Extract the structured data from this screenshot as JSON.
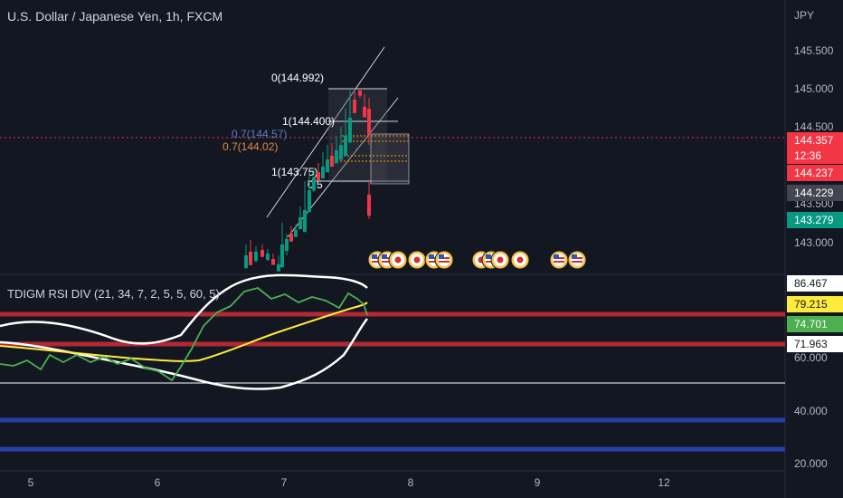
{
  "header": {
    "symbol_title": "U.S. Dollar / Japanese Yen, 1h, FXCM",
    "currency": "JPY"
  },
  "price_axis": {
    "labels": [
      "145.500",
      "145.000",
      "144.500",
      "143.500",
      "143.000"
    ]
  },
  "price_tags": [
    {
      "text": "144.357",
      "color": "#f23645"
    },
    {
      "text": "12:36",
      "color": "#f23645"
    },
    {
      "text": "144.237",
      "color": "#f23645"
    },
    {
      "text": "144.229",
      "color": "#434651"
    },
    {
      "text": "143.279",
      "color": "#089981"
    }
  ],
  "fib_labels": {
    "top": "0(144.992)",
    "mid": "1(144.400)",
    "left_a": "0.7(144.57)",
    "left_b": "0.7(144.02)",
    "lower": "1(143.75)",
    "lower_b": "0.5"
  },
  "indicator": {
    "title": "TDIGM RSI DIV (21, 34, 7, 2, 5, 5, 60, 5)",
    "axis_labels": [
      "60.000",
      "40.000",
      "20.000"
    ],
    "tags": [
      {
        "text": "86.467",
        "color": "#ffffff",
        "dark_text": true
      },
      {
        "text": "79.215",
        "color": "#ffeb3b",
        "dark_text": true
      },
      {
        "text": "74.701",
        "color": "#4caf50",
        "dark_text": false
      },
      {
        "text": "71.963",
        "color": "#ffffff",
        "dark_text": true
      }
    ]
  },
  "time_axis": {
    "labels": [
      "5",
      "6",
      "7",
      "8",
      "9",
      "12"
    ]
  },
  "events": [
    {
      "icon": "us-flag-icon"
    },
    {
      "icon": "us-flag-icon"
    },
    {
      "icon": "jp-flag-icon"
    },
    {
      "icon": "jp-flag-icon"
    },
    {
      "icon": "us-flag-icon"
    },
    {
      "icon": "us-flag-icon"
    },
    {
      "icon": "jp-flag-icon"
    },
    {
      "icon": "us-flag-icon"
    },
    {
      "icon": "jp-flag-icon"
    },
    {
      "icon": "jp-flag-icon"
    },
    {
      "icon": "us-flag-icon"
    },
    {
      "icon": "us-flag-icon"
    }
  ],
  "colors": {
    "background": "#131722",
    "up": "#089981",
    "down": "#f23645",
    "rsi_line": "#4caf50",
    "signal_line": "#ffeb3b",
    "band": "#ffffff",
    "overbought": "#b22833",
    "oversold": "#2440a8"
  }
}
